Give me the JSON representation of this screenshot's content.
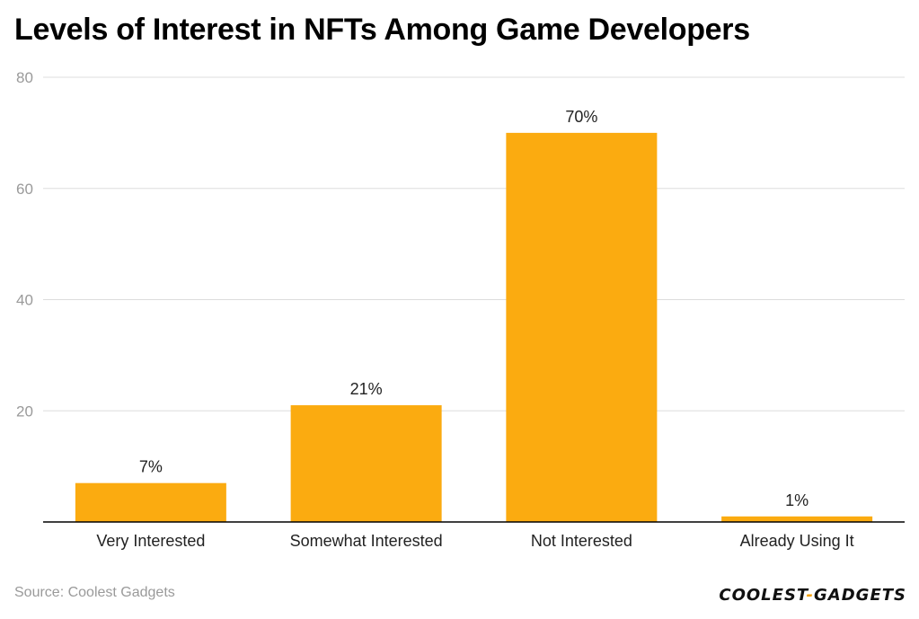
{
  "title": "Levels of Interest in NFTs Among Game Developers",
  "source": "Source: Coolest Gadgets",
  "logo": {
    "left": "COOLEST",
    "dash": "-",
    "right": "GADGETS"
  },
  "colors": {
    "bar": "#fbab10",
    "grid": "#dddddd",
    "axis": "#000000",
    "tick_text": "#9a9a9a",
    "label_text": "#222222"
  },
  "chart_data": {
    "type": "bar",
    "categories": [
      "Very Interested",
      "Somewhat Interested",
      "Not Interested",
      "Already Using It"
    ],
    "values": [
      7,
      21,
      70,
      1
    ],
    "data_labels": [
      "7%",
      "21%",
      "70%",
      "1%"
    ],
    "title": "Levels of Interest in NFTs Among Game Developers",
    "xlabel": "",
    "ylabel": "",
    "ylim": [
      0,
      80
    ],
    "yticks": [
      20,
      40,
      60,
      80
    ],
    "grid": true,
    "legend": "none"
  }
}
